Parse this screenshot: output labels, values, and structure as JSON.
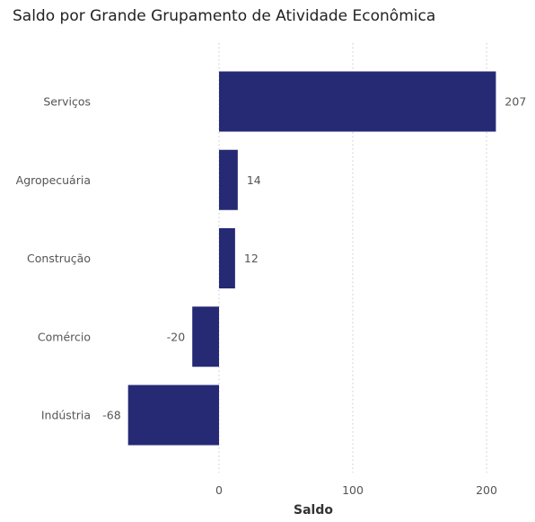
{
  "chart_data": {
    "type": "bar",
    "orientation": "horizontal",
    "title": "Saldo por Grande Grupamento de Atividade Econômica",
    "xlabel": "Saldo",
    "categories": [
      "Serviços",
      "Agropecuária",
      "Construção",
      "Comércio",
      "Indústria"
    ],
    "values": [
      207,
      14,
      12,
      -20,
      -68
    ],
    "value_labels": [
      "207",
      "14",
      "12",
      "-20",
      "-68"
    ],
    "xticks": [
      0,
      100,
      200
    ],
    "xtick_labels": [
      "0",
      "100",
      "200"
    ],
    "xlim": [
      -75,
      225
    ],
    "grid": "vertical dotted",
    "bar_color": "#262a75"
  }
}
